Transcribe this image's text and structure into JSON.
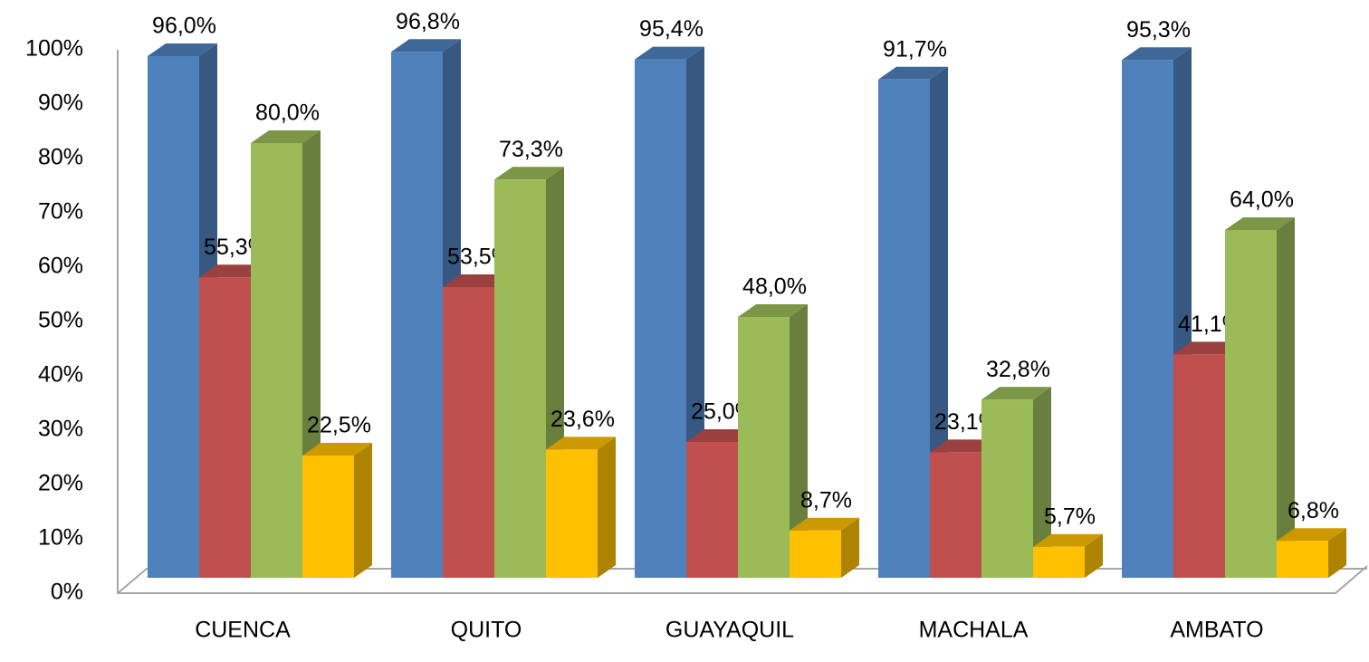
{
  "chart_data": {
    "type": "bar3d",
    "categories": [
      "CUENCA",
      "QUITO",
      "GUAYAQUIL",
      "MACHALA",
      "AMBATO"
    ],
    "series": [
      {
        "color": "#4f81bd",
        "values": [
          96.0,
          96.8,
          95.4,
          91.7,
          95.3
        ],
        "value_labels": [
          "96,0%",
          "96,8%",
          "95,4%",
          "91,7%",
          "95,3%"
        ]
      },
      {
        "color": "#c0504d",
        "values": [
          55.3,
          53.5,
          25.0,
          23.1,
          41.1
        ],
        "value_labels": [
          "55,3%",
          "53,5%",
          "25,0%",
          "23,1%",
          "41,1%"
        ]
      },
      {
        "color": "#9bbb59",
        "values": [
          80.0,
          73.3,
          48.0,
          32.8,
          64.0
        ],
        "value_labels": [
          "80,0%",
          "73,3%",
          "48,0%",
          "32,8%",
          "64,0%"
        ]
      },
      {
        "color": "#ffc000",
        "values": [
          22.5,
          23.6,
          8.7,
          5.7,
          6.8
        ],
        "value_labels": [
          "22,5%",
          "23,6%",
          "8,7%",
          "5,7%",
          "6,8%"
        ]
      }
    ],
    "ylim": [
      0,
      100
    ],
    "yticks": [
      {
        "value": 0,
        "label": "0%"
      },
      {
        "value": 10,
        "label": "10%"
      },
      {
        "value": 20,
        "label": "20%"
      },
      {
        "value": 30,
        "label": "30%"
      },
      {
        "value": 40,
        "label": "40%"
      },
      {
        "value": 50,
        "label": "50%"
      },
      {
        "value": 60,
        "label": "60%"
      },
      {
        "value": 70,
        "label": "70%"
      },
      {
        "value": 80,
        "label": "80%"
      },
      {
        "value": 90,
        "label": "90%"
      },
      {
        "value": 100,
        "label": "100%"
      }
    ]
  }
}
